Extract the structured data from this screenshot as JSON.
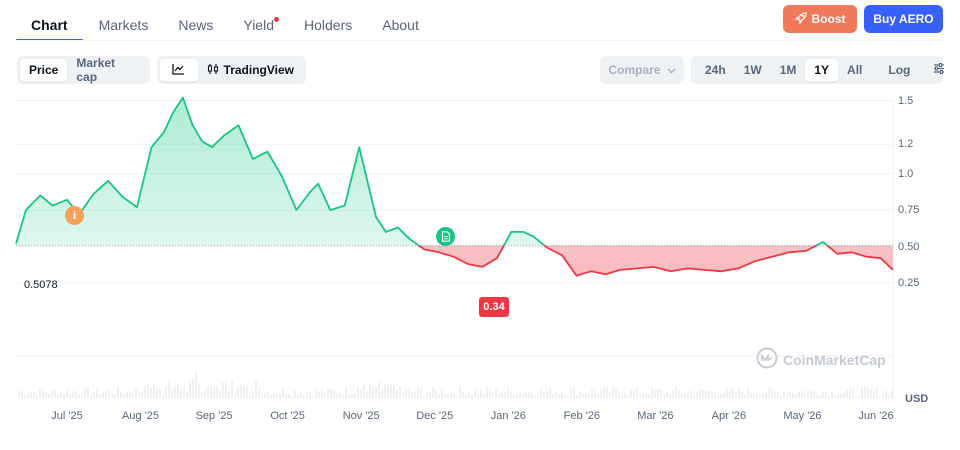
{
  "nav": {
    "tabs": [
      {
        "label": "Chart"
      },
      {
        "label": "Markets"
      },
      {
        "label": "News"
      },
      {
        "label": "Yield"
      },
      {
        "label": "Holders"
      },
      {
        "label": "About"
      }
    ],
    "boost_label": "Boost",
    "buy_label": "Buy AERO",
    "colors": {
      "active_tab_underline": "#3861fb",
      "boost": "#f0795b",
      "buy": "#3861fb",
      "new_dot": "#ea3943"
    }
  },
  "toolbar": {
    "metric_options": [
      "Price",
      "Market cap"
    ],
    "metric_selected": "Price",
    "line_icon": "line-chart-icon",
    "tradingview_label": "TradingView",
    "compare_label": "Compare",
    "ranges": [
      "24h",
      "1W",
      "1M",
      "1Y",
      "All"
    ],
    "range_selected": "1Y",
    "log_label": "Log",
    "settings_icon": "sliders-icon"
  },
  "chart": {
    "reference_label": "0.5078",
    "low_badge": "0.34",
    "watermark": "CoinMarketCap",
    "currency": "USD",
    "colors": {
      "up": "#16c784",
      "down": "#ea3943"
    },
    "markers": [
      {
        "name": "info-icon",
        "glyph": "i"
      },
      {
        "name": "document-icon"
      }
    ]
  },
  "chart_data": {
    "type": "area",
    "title": "",
    "xlabel": "",
    "ylabel": "USD",
    "x_ticks": [
      "Jul '25",
      "Aug '25",
      "Sep '25",
      "Oct '25",
      "Nov '25",
      "Dec '25",
      "Jan '26",
      "Feb '26",
      "Mar '26",
      "Apr '26",
      "May '26",
      "Jun '26"
    ],
    "y_ticks": [
      "1.5",
      "1.2",
      "1.0",
      "0.75",
      "0.50",
      "0.25"
    ],
    "y_tick_values": [
      1.5,
      1.2,
      1.0,
      0.75,
      0.5,
      0.25
    ],
    "reference_value": 0.5078,
    "ylim": [
      0.0,
      1.75
    ],
    "grid": true,
    "series": [
      {
        "x": [
          "2025-06-09",
          "2025-06-14",
          "2025-06-20",
          "2025-06-25",
          "2025-07-01",
          "2025-07-06",
          "2025-07-12",
          "2025-07-18",
          "2025-07-24",
          "2025-07-30",
          "2025-08-05",
          "2025-08-10",
          "2025-08-14",
          "2025-08-18",
          "2025-08-22",
          "2025-08-26",
          "2025-08-30",
          "2025-09-04",
          "2025-09-10",
          "2025-09-16",
          "2025-09-22",
          "2025-09-28",
          "2025-10-04",
          "2025-10-10",
          "2025-10-13",
          "2025-10-18",
          "2025-10-24",
          "2025-10-30",
          "2025-11-06",
          "2025-11-10",
          "2025-11-15",
          "2025-11-20",
          "2025-11-26",
          "2025-12-02",
          "2025-12-08",
          "2025-12-14",
          "2025-12-20",
          "2025-12-26",
          "2026-01-01",
          "2026-01-06",
          "2026-01-10",
          "2026-01-16",
          "2026-01-22",
          "2026-01-28",
          "2026-02-03",
          "2026-02-09",
          "2026-02-15",
          "2026-02-22",
          "2026-03-01",
          "2026-03-08",
          "2026-03-15",
          "2026-03-22",
          "2026-03-29",
          "2026-04-05",
          "2026-04-12",
          "2026-04-19",
          "2026-04-26",
          "2026-05-03",
          "2026-05-10",
          "2026-05-16",
          "2026-05-22",
          "2026-05-28",
          "2026-06-03",
          "2026-06-08"
        ],
        "y": [
          0.52,
          0.75,
          0.85,
          0.78,
          0.82,
          0.72,
          0.86,
          0.95,
          0.84,
          0.77,
          1.18,
          1.28,
          1.42,
          1.52,
          1.33,
          1.22,
          1.18,
          1.26,
          1.33,
          1.1,
          1.15,
          0.98,
          0.75,
          0.88,
          0.93,
          0.75,
          0.78,
          1.18,
          0.7,
          0.6,
          0.63,
          0.55,
          0.48,
          0.46,
          0.43,
          0.38,
          0.36,
          0.42,
          0.6,
          0.6,
          0.57,
          0.49,
          0.44,
          0.3,
          0.33,
          0.31,
          0.34,
          0.35,
          0.36,
          0.33,
          0.35,
          0.34,
          0.33,
          0.35,
          0.4,
          0.43,
          0.46,
          0.47,
          0.53,
          0.45,
          0.46,
          0.43,
          0.42,
          0.34
        ]
      }
    ]
  }
}
